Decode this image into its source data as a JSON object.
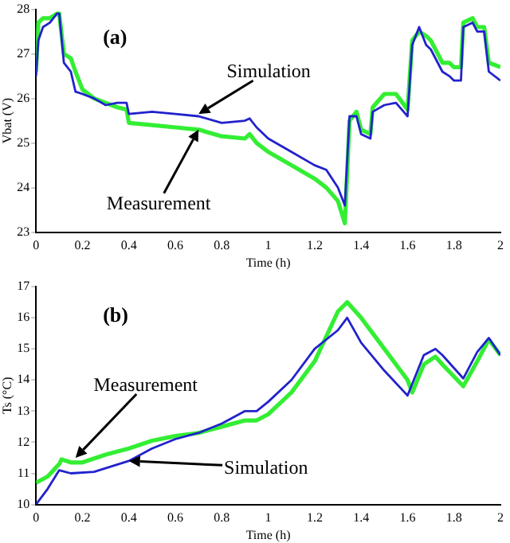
{
  "chart_data": [
    {
      "type": "line",
      "title": "(a)",
      "xlabel": "Time (h)",
      "ylabel": "Vbat (V)",
      "xlim": [
        0,
        2
      ],
      "xticks": [
        0,
        0.2,
        0.4,
        0.6,
        0.8,
        1,
        1.2,
        1.4,
        1.6,
        1.8,
        2
      ],
      "ylim": [
        23,
        28
      ],
      "yticks": [
        23,
        24,
        25,
        26,
        27,
        28
      ],
      "grid": false,
      "legend": false,
      "marker": "none",
      "line_style": "solid",
      "annotations": [
        {
          "text": "Simulation",
          "x": 0.7,
          "y": 25.65
        },
        {
          "text": "Measurement",
          "x": 0.7,
          "y": 25.3
        }
      ],
      "series": [
        {
          "color": "#33ee33",
          "x": [
            0,
            0.01,
            0.03,
            0.06,
            0.09,
            0.1,
            0.12,
            0.15,
            0.17,
            0.2,
            0.25,
            0.3,
            0.35,
            0.39,
            0.4,
            0.5,
            0.6,
            0.7,
            0.8,
            0.9,
            0.92,
            0.95,
            1.0,
            1.1,
            1.2,
            1.25,
            1.3,
            1.33,
            1.35,
            1.38,
            1.4,
            1.44,
            1.45,
            1.5,
            1.55,
            1.6,
            1.62,
            1.65,
            1.68,
            1.7,
            1.75,
            1.78,
            1.8,
            1.83,
            1.84,
            1.88,
            1.9,
            1.93,
            1.95,
            2.0
          ],
          "values": [
            26.6,
            27.7,
            27.8,
            27.8,
            27.9,
            27.9,
            27.0,
            26.9,
            26.6,
            26.2,
            26.0,
            25.9,
            25.8,
            25.75,
            25.45,
            25.4,
            25.35,
            25.3,
            25.15,
            25.1,
            25.2,
            25.0,
            24.8,
            24.5,
            24.2,
            24.0,
            23.7,
            23.2,
            25.5,
            25.7,
            25.3,
            25.2,
            25.8,
            26.1,
            26.1,
            25.75,
            27.3,
            27.5,
            27.4,
            27.3,
            26.8,
            26.8,
            26.7,
            26.7,
            27.7,
            27.8,
            27.6,
            27.6,
            26.8,
            26.7
          ]
        },
        {
          "color": "#2222cc",
          "x": [
            0,
            0.01,
            0.03,
            0.06,
            0.09,
            0.1,
            0.12,
            0.15,
            0.17,
            0.2,
            0.25,
            0.3,
            0.35,
            0.39,
            0.4,
            0.5,
            0.6,
            0.7,
            0.8,
            0.9,
            0.92,
            0.95,
            1.0,
            1.1,
            1.2,
            1.25,
            1.3,
            1.33,
            1.35,
            1.38,
            1.4,
            1.44,
            1.45,
            1.5,
            1.55,
            1.6,
            1.62,
            1.65,
            1.68,
            1.7,
            1.75,
            1.78,
            1.8,
            1.83,
            1.84,
            1.88,
            1.9,
            1.93,
            1.95,
            2.0
          ],
          "values": [
            26.5,
            27.3,
            27.6,
            27.7,
            27.9,
            27.9,
            26.8,
            26.6,
            26.15,
            26.1,
            26.0,
            25.85,
            25.9,
            25.9,
            25.65,
            25.7,
            25.65,
            25.6,
            25.45,
            25.5,
            25.55,
            25.35,
            25.1,
            24.8,
            24.5,
            24.4,
            24.0,
            23.6,
            25.6,
            25.6,
            25.2,
            25.1,
            25.7,
            25.85,
            25.9,
            25.6,
            27.2,
            27.6,
            27.2,
            27.1,
            26.6,
            26.5,
            26.4,
            26.4,
            27.6,
            27.7,
            27.5,
            27.5,
            26.6,
            26.4
          ]
        }
      ]
    },
    {
      "type": "line",
      "title": "(b)",
      "xlabel": "Time (h)",
      "ylabel": "Ts (°C)",
      "xlim": [
        0,
        2
      ],
      "xticks": [
        0,
        0.2,
        0.4,
        0.6,
        0.8,
        1,
        1.2,
        1.4,
        1.6,
        1.8,
        2
      ],
      "ylim": [
        10,
        17
      ],
      "yticks": [
        10,
        11,
        12,
        13,
        14,
        15,
        16,
        17
      ],
      "grid": false,
      "legend": false,
      "marker": "none",
      "line_style": "solid",
      "annotations": [
        {
          "text": "Measurement",
          "x": 0.17,
          "y": 11.5
        },
        {
          "text": "Simulation",
          "x": 0.4,
          "y": 11.4
        }
      ],
      "series": [
        {
          "color": "#33ee33",
          "x": [
            0,
            0.05,
            0.1,
            0.11,
            0.15,
            0.2,
            0.3,
            0.4,
            0.5,
            0.6,
            0.7,
            0.8,
            0.9,
            0.95,
            1.0,
            1.1,
            1.2,
            1.3,
            1.34,
            1.4,
            1.5,
            1.6,
            1.62,
            1.67,
            1.72,
            1.75,
            1.84,
            1.9,
            1.95,
            2.0
          ],
          "values": [
            10.7,
            10.9,
            11.3,
            11.45,
            11.35,
            11.35,
            11.6,
            11.8,
            12.05,
            12.2,
            12.3,
            12.5,
            12.7,
            12.7,
            12.9,
            13.6,
            14.6,
            16.2,
            16.5,
            16.0,
            15.0,
            14.0,
            13.6,
            14.5,
            14.75,
            14.5,
            13.8,
            14.6,
            15.3,
            14.8
          ]
        },
        {
          "color": "#2222cc",
          "x": [
            0,
            0.05,
            0.1,
            0.15,
            0.25,
            0.4,
            0.5,
            0.6,
            0.7,
            0.8,
            0.9,
            0.95,
            1.0,
            1.1,
            1.2,
            1.3,
            1.34,
            1.4,
            1.5,
            1.6,
            1.67,
            1.72,
            1.75,
            1.84,
            1.9,
            1.95,
            2.0
          ],
          "values": [
            10.0,
            10.5,
            11.1,
            11.0,
            11.05,
            11.4,
            11.8,
            12.1,
            12.3,
            12.6,
            13.0,
            13.0,
            13.3,
            14.0,
            15.0,
            15.6,
            16.0,
            15.2,
            14.3,
            13.5,
            14.8,
            15.0,
            14.8,
            14.05,
            14.9,
            15.35,
            14.8
          ]
        }
      ]
    }
  ]
}
